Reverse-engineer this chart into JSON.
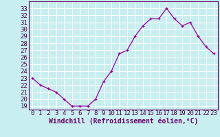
{
  "x": [
    0,
    1,
    2,
    3,
    4,
    5,
    6,
    7,
    8,
    9,
    10,
    11,
    12,
    13,
    14,
    15,
    16,
    17,
    18,
    19,
    20,
    21,
    22,
    23
  ],
  "y": [
    23.0,
    22.0,
    21.5,
    21.0,
    20.0,
    19.0,
    19.0,
    19.0,
    20.0,
    22.5,
    24.0,
    26.5,
    27.0,
    29.0,
    30.5,
    31.5,
    31.5,
    33.0,
    31.5,
    30.5,
    31.0,
    29.0,
    27.5,
    26.5
  ],
  "line_color": "#990099",
  "marker": "+",
  "bg_color": "#c8eef0",
  "grid_color": "#ffffff",
  "xlabel": "Windchill (Refroidissement éolien,°C)",
  "xlim": [
    -0.5,
    23.5
  ],
  "ylim": [
    18.5,
    34.0
  ],
  "yticks": [
    19,
    20,
    21,
    22,
    23,
    24,
    25,
    26,
    27,
    28,
    29,
    30,
    31,
    32,
    33
  ],
  "xticks": [
    0,
    1,
    2,
    3,
    4,
    5,
    6,
    7,
    8,
    9,
    10,
    11,
    12,
    13,
    14,
    15,
    16,
    17,
    18,
    19,
    20,
    21,
    22,
    23
  ],
  "font_size": 6.5,
  "label_font_size": 7.0,
  "line_color_spine": "#660066",
  "tick_color": "#440044"
}
